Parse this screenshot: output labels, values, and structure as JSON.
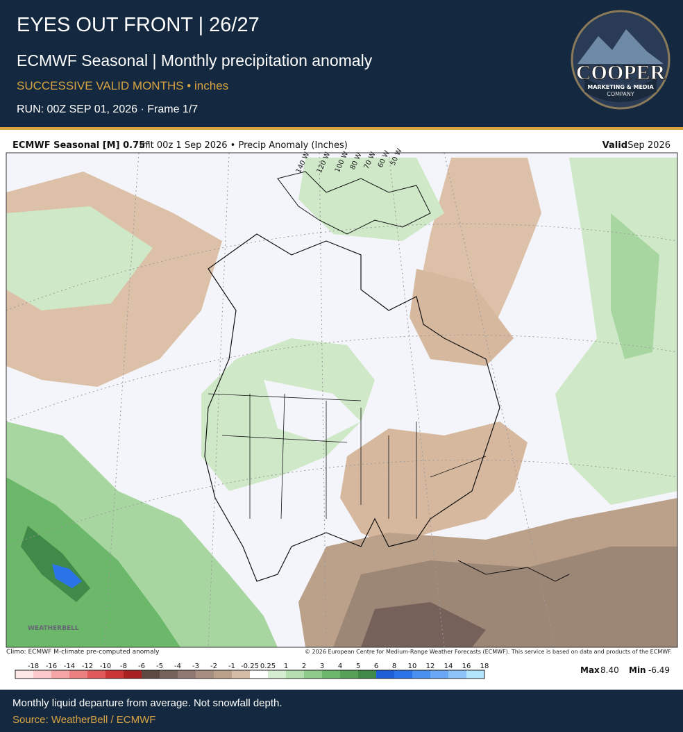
{
  "header": {
    "title": "EYES OUT FRONT | 26/27",
    "subtitle": "ECMWF Seasonal | Monthly precipitation anomaly",
    "tag": "SUCCESSIVE VALID MONTHS • inches",
    "run": "RUN: 00Z SEP 01, 2026 · Frame 1/7"
  },
  "logo": {
    "name": "COOPER",
    "line1": "MARKETING & MEDIA",
    "line2": "COMPANY"
  },
  "map": {
    "model": "ECMWF Seasonal [M] 0.75°",
    "init": "Init 00z 1 Sep 2026 • Precip Anomaly (Inches)",
    "valid_label": "Valid",
    "valid_value": "Sep 2026",
    "longitudes": [
      "140 W",
      "120 W",
      "100 W",
      "80 W",
      "70 W",
      "60 W",
      "50 W"
    ],
    "watermark": "WEATHERBELL",
    "climo": "Climo: ECMWF M-climate pre-computed anomaly",
    "copyright": "© 2026 European Centre for Medium-Range Weather Forecasts (ECMWF). This service is based on data and products of the ECMWF.",
    "colorbar": {
      "labels": [
        "-18",
        "-16",
        "-14",
        "-12",
        "-10",
        "-8",
        "-6",
        "-5",
        "-4",
        "-3",
        "-2",
        "-1",
        "-0.25",
        "0.25",
        "1",
        "2",
        "3",
        "4",
        "5",
        "6",
        "8",
        "10",
        "12",
        "14",
        "16",
        "18"
      ],
      "colors": [
        "#fde6e6",
        "#fbc9c9",
        "#f5a5a5",
        "#ec7f7f",
        "#e05a5a",
        "#cc3535",
        "#a82020",
        "#5c4a42",
        "#76615a",
        "#8f7870",
        "#a68e80",
        "#bba08a",
        "#d5bca6",
        "#ffffff",
        "#d6ecd0",
        "#b5deb0",
        "#8fcb8a",
        "#6cb86a",
        "#54a157",
        "#3f8a48",
        "#1e5fd8",
        "#2b74e8",
        "#4a90f0",
        "#6aa8f5",
        "#8cc3f8",
        "#b2e4fb"
      ]
    },
    "max_label": "Max",
    "max_value": "8.40",
    "min_label": "Min",
    "min_value": "-6.49"
  },
  "footer": {
    "note": "Monthly liquid departure from average. Not snowfall depth.",
    "source": "Source: WeatherBell / ECMWF"
  }
}
